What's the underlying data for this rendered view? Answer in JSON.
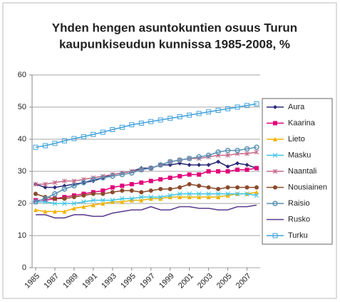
{
  "chart_data": {
    "type": "line",
    "title": [
      "Yhden hengen asuntokuntien osuus Turun",
      "kaupunkiseudun kunnissa 1985-2008, %"
    ],
    "x": [
      1985,
      1986,
      1987,
      1988,
      1989,
      1990,
      1991,
      1992,
      1993,
      1994,
      1995,
      1996,
      1997,
      1998,
      1999,
      2000,
      2001,
      2002,
      2003,
      2004,
      2005,
      2006,
      2007,
      2008
    ],
    "xlim": [
      1985,
      2008
    ],
    "xticks": [
      1985,
      1987,
      1989,
      1991,
      1993,
      1995,
      1997,
      1999,
      2001,
      2003,
      2005,
      2007
    ],
    "ylim": [
      0,
      60
    ],
    "yticks": [
      0,
      10,
      20,
      30,
      40,
      50,
      60
    ],
    "grid": true,
    "legend": "right",
    "series": [
      {
        "name": "Aura",
        "color": "#2b2b78",
        "marker": "diamond",
        "values": [
          26,
          25,
          25,
          25.5,
          26,
          26.5,
          27,
          28,
          29,
          29.5,
          30,
          31,
          31,
          32,
          32,
          32.5,
          32,
          32,
          32,
          33,
          31.5,
          32.5,
          32,
          31
        ]
      },
      {
        "name": "Kaarina",
        "color": "#e2007a",
        "marker": "square",
        "values": [
          21,
          21,
          21.5,
          22,
          22.5,
          23,
          23.5,
          24,
          25,
          25.5,
          26,
          26.5,
          27,
          27.5,
          28,
          28.5,
          29,
          29,
          30,
          30,
          30,
          30.5,
          30.5,
          31
        ]
      },
      {
        "name": "Lieto",
        "color": "#f2b200",
        "marker": "triangle",
        "values": [
          18,
          17.5,
          17.5,
          17.5,
          18.5,
          19,
          19.5,
          20,
          20.5,
          20.5,
          21,
          21,
          21.5,
          21.5,
          22,
          22,
          22,
          22,
          22,
          22,
          22.5,
          23,
          23,
          23.5
        ]
      },
      {
        "name": "Masku",
        "color": "#3cc4e4",
        "marker": "cross",
        "values": [
          20.5,
          20.5,
          20,
          20,
          20,
          20.5,
          21,
          21,
          21,
          21.5,
          21.5,
          22,
          22,
          22,
          22.5,
          23,
          23,
          23,
          23,
          23,
          23,
          23,
          23,
          22.5
        ]
      },
      {
        "name": "Naantali",
        "color": "#c46a8a",
        "marker": "star",
        "values": [
          26,
          26,
          26.5,
          27,
          27,
          27.5,
          28,
          28.5,
          29,
          29.5,
          30,
          30.5,
          31,
          32,
          33,
          33.5,
          34,
          34,
          34.5,
          35,
          35,
          35.5,
          35.5,
          36
        ]
      },
      {
        "name": "Nousiainen",
        "color": "#8a4a2a",
        "marker": "circle",
        "values": [
          23,
          22,
          21.5,
          21.5,
          22,
          22.5,
          23,
          23,
          23.5,
          24,
          24,
          23.5,
          24,
          24.5,
          24.5,
          25,
          26,
          25.5,
          25,
          24.5,
          25,
          25,
          25,
          25
        ]
      },
      {
        "name": "Raisio",
        "color": "#5a92b4",
        "marker": "open-circle",
        "values": [
          20.5,
          21.5,
          23,
          24.5,
          25.5,
          26.5,
          27.5,
          28,
          28.5,
          29,
          29.5,
          30.5,
          31,
          32,
          33,
          33.5,
          34,
          34.5,
          35,
          36,
          36.5,
          36.5,
          37,
          37.5
        ]
      },
      {
        "name": "Rusko",
        "color": "#5a3a8c",
        "marker": "none",
        "values": [
          16.5,
          16.5,
          15.5,
          15.5,
          16.5,
          16.5,
          16,
          16,
          17,
          17.5,
          18,
          18,
          19,
          18,
          18,
          19,
          19,
          18.5,
          18.5,
          18,
          18,
          19,
          19,
          19.5
        ]
      },
      {
        "name": "Turku",
        "color": "#42a2da",
        "marker": "open-square",
        "values": [
          37.5,
          38,
          38.7,
          39.5,
          40.2,
          40.8,
          41.5,
          42.2,
          43,
          43.7,
          44.5,
          45,
          45.5,
          46,
          46.5,
          47,
          47.5,
          48,
          48.5,
          49,
          49.5,
          50,
          50.5,
          51
        ]
      }
    ]
  }
}
